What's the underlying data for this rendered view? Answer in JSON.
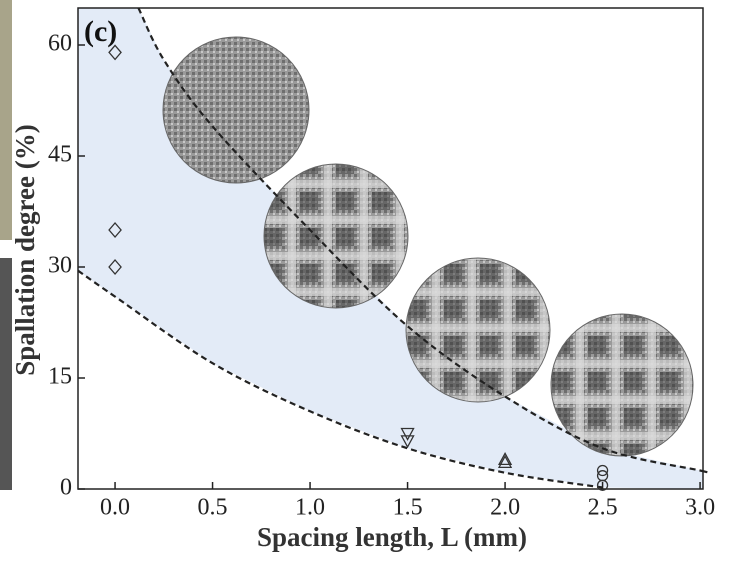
{
  "chart_data": {
    "type": "scatter",
    "annotation": "(c)",
    "x_label": "Spacing length, L (mm)",
    "y_label": "Spallation degree (%)",
    "xlim": [
      -0.19,
      3.015
    ],
    "ylim": [
      0,
      65
    ],
    "xticks": [
      {
        "value": 0,
        "label": "0.0"
      },
      {
        "value": 0.5,
        "label": "0.5"
      },
      {
        "value": 1,
        "label": "1.0"
      },
      {
        "value": 1.5,
        "label": "1.5"
      },
      {
        "value": 2,
        "label": "2.0"
      },
      {
        "value": 2.5,
        "label": "2.5"
      },
      {
        "value": 3,
        "label": "3.0"
      }
    ],
    "yticks": [
      0,
      15,
      30,
      45,
      60
    ],
    "band_color": "#e3ebf7",
    "curves": [
      {
        "x": [
          0.12,
          0.25,
          0.5,
          1.0,
          1.5,
          2.0,
          2.5,
          3.0,
          3.015
        ],
        "values": [
          65,
          58,
          49,
          35,
          22,
          12.5,
          5.5,
          2.5,
          2.4
        ]
      },
      {
        "x": [
          -0.19,
          0,
          0.5,
          1.0,
          1.5,
          2.0,
          2.5
        ],
        "values": [
          29.5,
          26,
          17,
          10.5,
          5.5,
          2.2,
          0.2
        ]
      }
    ],
    "series": [
      {
        "marker": "diamond",
        "color": "#333333",
        "x": [
          0,
          0,
          0
        ],
        "values": [
          59,
          35,
          30
        ]
      },
      {
        "marker": "triangle-down",
        "color": "#333333",
        "x": [
          1.5,
          1.5
        ],
        "values": [
          7.5,
          6.5
        ]
      },
      {
        "marker": "triangle-up",
        "color": "#333333",
        "x": [
          2.0,
          2.0
        ],
        "values": [
          3.6,
          4.0
        ]
      },
      {
        "marker": "circle",
        "color": "#333333",
        "x": [
          2.5,
          2.5,
          2.5
        ],
        "values": [
          2.5,
          1.8,
          0.5
        ]
      }
    ]
  }
}
